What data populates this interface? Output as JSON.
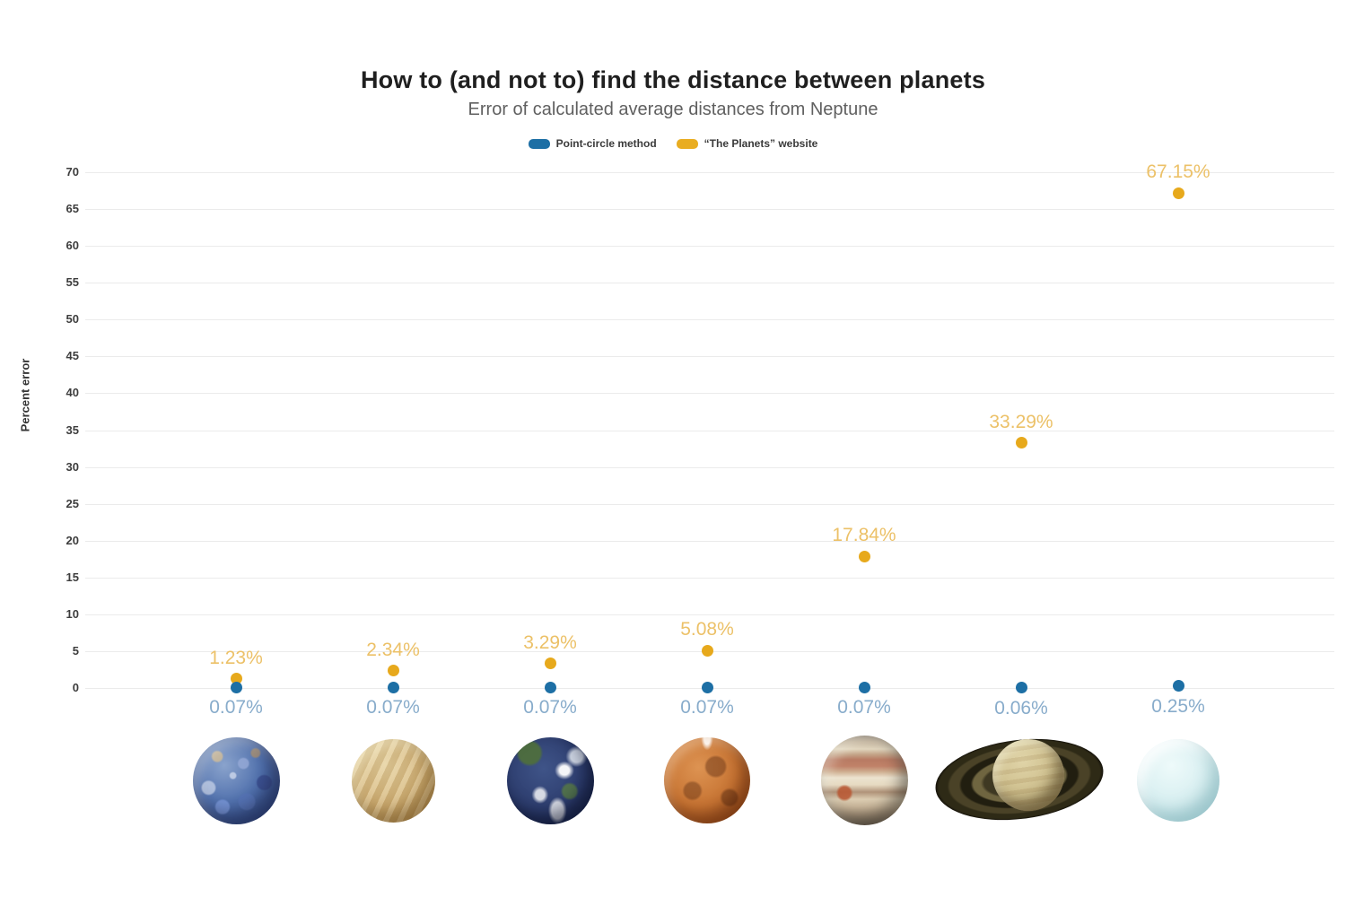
{
  "header": {
    "title": "How to (and not to) find the distance between planets",
    "subtitle": "Error of calculated average distances from Neptune"
  },
  "legend": {
    "items": [
      {
        "label": "Point-circle method",
        "color": "#1d6fa5"
      },
      {
        "label": "“The Planets” website",
        "color": "#e9ad21"
      }
    ]
  },
  "chart_data": {
    "type": "scatter",
    "title": "How to (and not to) find the distance between planets",
    "subtitle": "Error of calculated average distances from Neptune",
    "xlabel": "",
    "ylabel": "Percent error",
    "ylim": [
      0,
      70
    ],
    "yticks": [
      0,
      5,
      10,
      15,
      20,
      25,
      30,
      35,
      40,
      45,
      50,
      55,
      60,
      65,
      70
    ],
    "grid": true,
    "legend_position": "top",
    "categories": [
      "mercury",
      "venus",
      "earth",
      "mars",
      "jupiter",
      "saturn",
      "uranus"
    ],
    "series": [
      {
        "name": "Point-circle method",
        "point_color": "#1d6fa5",
        "label_color": "#88accb",
        "label_position": "below",
        "values": [
          0.07,
          0.07,
          0.07,
          0.07,
          0.07,
          0.06,
          0.25
        ],
        "labels": [
          "0.07%",
          "0.07%",
          "0.07%",
          "0.07%",
          "0.07%",
          "0.06%",
          "0.25%"
        ]
      },
      {
        "name": "“The Planets” website",
        "point_color": "#e7a91c",
        "label_color": "#ecc168",
        "label_position": "above",
        "values": [
          1.23,
          2.34,
          3.29,
          5.08,
          17.84,
          33.29,
          67.15
        ],
        "labels": [
          "1.23%",
          "2.34%",
          "3.29%",
          "5.08%",
          "17.84%",
          "33.29%",
          "67.15%"
        ]
      }
    ]
  }
}
